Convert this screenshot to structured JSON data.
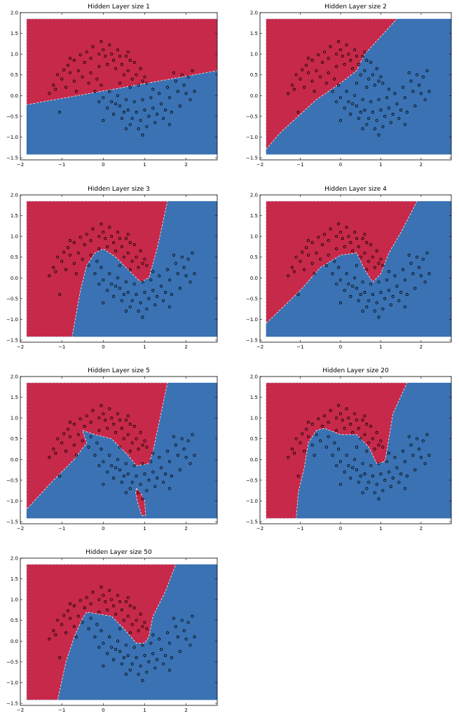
{
  "colors": {
    "red_region": "#c7294a",
    "blue_region": "#3a72b3",
    "point_stroke": "#000000",
    "background": "#ffffff"
  },
  "chart_data": [
    {
      "type": "scatter",
      "title": "Hidden Layer size 1",
      "xlim": [
        -2,
        2.75
      ],
      "ylim": [
        -1.55,
        2.0
      ],
      "xticks": [
        -2,
        -1,
        0,
        1,
        2
      ],
      "yticks": [
        2.0,
        1.5,
        1.0,
        0.5,
        0.0,
        -0.5,
        -1.0,
        -1.5
      ],
      "region_extent": {
        "x": [
          -1.85,
          2.75
        ],
        "y": [
          -1.42,
          1.85
        ]
      },
      "red_region": [
        [
          -1.85,
          1.85
        ],
        [
          2.75,
          1.85
        ],
        [
          2.75,
          0.6
        ],
        [
          -1.85,
          -0.22
        ]
      ]
    },
    {
      "type": "scatter",
      "title": "Hidden Layer size 2",
      "xlim": [
        -2,
        2.75
      ],
      "ylim": [
        -1.55,
        2.0
      ],
      "xticks": [
        -2,
        -1,
        0,
        1,
        2
      ],
      "yticks": [
        2.0,
        1.5,
        1.0,
        0.5,
        0.0,
        -0.5,
        -1.0,
        -1.5
      ],
      "region_extent": {
        "x": [
          -1.85,
          2.75
        ],
        "y": [
          -1.42,
          1.85
        ]
      },
      "red_region": [
        [
          -1.85,
          1.85
        ],
        [
          1.4,
          1.85
        ],
        [
          0.6,
          1.0
        ],
        [
          0.4,
          0.6
        ],
        [
          0.0,
          0.3
        ],
        [
          -0.6,
          -0.1
        ],
        [
          -1.5,
          -0.9
        ],
        [
          -1.85,
          -1.3
        ]
      ]
    },
    {
      "type": "scatter",
      "title": "Hidden Layer size 3",
      "xlim": [
        -2,
        2.75
      ],
      "ylim": [
        -1.55,
        2.0
      ],
      "xticks": [
        -2,
        -1,
        0,
        1,
        2
      ],
      "yticks": [
        2.0,
        1.5,
        1.0,
        0.5,
        0.0,
        -0.5,
        -1.0,
        -1.5
      ],
      "region_extent": {
        "x": [
          -1.85,
          2.75
        ],
        "y": [
          -1.42,
          1.85
        ]
      },
      "red_region": [
        [
          -1.85,
          1.85
        ],
        [
          1.55,
          1.85
        ],
        [
          1.3,
          0.7
        ],
        [
          1.1,
          0.0
        ],
        [
          0.9,
          -0.1
        ],
        [
          0.6,
          0.2
        ],
        [
          0.3,
          0.5
        ],
        [
          0.0,
          0.7
        ],
        [
          -0.2,
          0.6
        ],
        [
          -0.4,
          0.3
        ],
        [
          -0.55,
          -0.3
        ],
        [
          -0.75,
          -1.42
        ],
        [
          -1.85,
          -1.42
        ]
      ]
    },
    {
      "type": "scatter",
      "title": "Hidden Layer size 4",
      "xlim": [
        -2,
        2.75
      ],
      "ylim": [
        -1.55,
        2.0
      ],
      "xticks": [
        -2,
        -1,
        0,
        1,
        2
      ],
      "yticks": [
        2.0,
        1.5,
        1.0,
        0.5,
        0.0,
        -0.5,
        -1.0,
        -1.5
      ],
      "region_extent": {
        "x": [
          -1.85,
          2.75
        ],
        "y": [
          -1.42,
          1.85
        ]
      },
      "red_region": [
        [
          -1.85,
          1.85
        ],
        [
          1.9,
          1.85
        ],
        [
          1.5,
          1.1
        ],
        [
          1.2,
          0.6
        ],
        [
          1.0,
          0.1
        ],
        [
          0.8,
          -0.1
        ],
        [
          0.6,
          0.2
        ],
        [
          0.4,
          0.6
        ],
        [
          0.0,
          0.55
        ],
        [
          -0.5,
          0.25
        ],
        [
          -1.0,
          -0.3
        ],
        [
          -1.85,
          -1.1
        ]
      ]
    },
    {
      "type": "scatter",
      "title": "Hidden Layer size 5",
      "xlim": [
        -2,
        2.75
      ],
      "ylim": [
        -1.55,
        2.0
      ],
      "xticks": [
        -2,
        -1,
        0,
        1,
        2
      ],
      "yticks": [
        2.0,
        1.5,
        1.0,
        0.5,
        0.0,
        -0.5,
        -1.0,
        -1.5
      ],
      "region_extent": {
        "x": [
          -1.85,
          2.75
        ],
        "y": [
          -1.42,
          1.85
        ]
      },
      "red_region": [
        [
          -1.85,
          1.85
        ],
        [
          1.55,
          1.85
        ],
        [
          1.35,
          0.9
        ],
        [
          1.2,
          0.2
        ],
        [
          1.1,
          -0.1
        ],
        [
          0.8,
          -0.15
        ],
        [
          0.6,
          0.1
        ],
        [
          0.2,
          0.5
        ],
        [
          -0.2,
          0.6
        ],
        [
          -0.5,
          0.7
        ],
        [
          -0.4,
          0.4
        ],
        [
          -0.7,
          0.0
        ],
        [
          -1.2,
          -0.5
        ],
        [
          -1.85,
          -1.2
        ]
      ],
      "red_island": [
        [
          0.8,
          -0.7
        ],
        [
          0.9,
          -0.8
        ],
        [
          1.0,
          -1.0
        ],
        [
          1.02,
          -1.35
        ],
        [
          0.93,
          -1.35
        ],
        [
          0.82,
          -1.0
        ],
        [
          0.78,
          -0.8
        ]
      ]
    },
    {
      "type": "scatter",
      "title": "Hidden Layer size 20",
      "xlim": [
        -2,
        2.75
      ],
      "ylim": [
        -1.55,
        2.0
      ],
      "xticks": [
        -2,
        -1,
        0,
        1,
        2
      ],
      "yticks": [
        2.0,
        1.5,
        1.0,
        0.5,
        0.0,
        -0.5,
        -1.0,
        -1.5
      ],
      "region_extent": {
        "x": [
          -1.85,
          2.75
        ],
        "y": [
          -1.42,
          1.85
        ]
      },
      "red_region": [
        [
          -1.85,
          1.85
        ],
        [
          1.65,
          1.85
        ],
        [
          1.3,
          1.1
        ],
        [
          1.2,
          0.5
        ],
        [
          1.1,
          -0.05
        ],
        [
          0.9,
          -0.1
        ],
        [
          0.7,
          0.3
        ],
        [
          0.4,
          0.6
        ],
        [
          0.0,
          0.6
        ],
        [
          -0.4,
          0.75
        ],
        [
          -0.6,
          0.7
        ],
        [
          -0.8,
          0.4
        ],
        [
          -0.9,
          -0.2
        ],
        [
          -1.05,
          -0.8
        ],
        [
          -1.1,
          -1.42
        ],
        [
          -1.85,
          -1.42
        ]
      ]
    },
    {
      "type": "scatter",
      "title": "Hidden Layer size 50",
      "xlim": [
        -2,
        2.75
      ],
      "ylim": [
        -1.55,
        2.0
      ],
      "xticks": [
        -2,
        -1,
        0,
        1,
        2
      ],
      "yticks": [
        2.0,
        1.5,
        1.0,
        0.5,
        0.0,
        -0.5,
        -1.0,
        -1.5
      ],
      "region_extent": {
        "x": [
          -1.85,
          2.75
        ],
        "y": [
          -1.42,
          1.85
        ]
      },
      "red_region": [
        [
          -1.85,
          1.85
        ],
        [
          1.75,
          1.85
        ],
        [
          1.5,
          1.2
        ],
        [
          1.2,
          0.6
        ],
        [
          1.1,
          0.1
        ],
        [
          1.0,
          -0.05
        ],
        [
          0.8,
          -0.05
        ],
        [
          0.5,
          0.3
        ],
        [
          0.2,
          0.6
        ],
        [
          -0.1,
          0.65
        ],
        [
          -0.4,
          0.7
        ],
        [
          -0.5,
          0.55
        ],
        [
          -0.7,
          0.1
        ],
        [
          -0.9,
          -0.5
        ],
        [
          -1.1,
          -1.42
        ],
        [
          -1.85,
          -1.42
        ]
      ]
    }
  ],
  "scatter_points": [
    [
      -1.1,
      0.5
    ],
    [
      -0.95,
      0.62
    ],
    [
      -0.85,
      0.73
    ],
    [
      -0.7,
      0.85
    ],
    [
      -0.55,
      0.98
    ],
    [
      -0.4,
      1.05
    ],
    [
      -0.25,
      1.18
    ],
    [
      -0.05,
      1.3
    ],
    [
      0.15,
      1.22
    ],
    [
      0.35,
      1.1
    ],
    [
      0.55,
      0.95
    ],
    [
      0.75,
      0.8
    ],
    [
      0.9,
      0.65
    ],
    [
      1.0,
      0.45
    ],
    [
      1.05,
      0.3
    ],
    [
      -1.2,
      0.25
    ],
    [
      -1.0,
      0.4
    ],
    [
      -0.8,
      0.55
    ],
    [
      -0.6,
      0.6
    ],
    [
      -0.45,
      0.8
    ],
    [
      -0.3,
      0.9
    ],
    [
      -0.1,
      1.0
    ],
    [
      0.05,
      0.95
    ],
    [
      0.25,
      0.85
    ],
    [
      0.45,
      0.75
    ],
    [
      0.6,
      0.6
    ],
    [
      0.8,
      0.5
    ],
    [
      0.95,
      0.35
    ],
    [
      -1.3,
      0.05
    ],
    [
      -1.15,
      0.15
    ],
    [
      -0.9,
      0.2
    ],
    [
      -0.7,
      0.35
    ],
    [
      -0.5,
      0.45
    ],
    [
      -0.3,
      0.55
    ],
    [
      -0.1,
      0.7
    ],
    [
      0.1,
      0.75
    ],
    [
      0.3,
      0.65
    ],
    [
      0.5,
      0.5
    ],
    [
      0.7,
      0.4
    ],
    [
      0.85,
      0.25
    ],
    [
      -1.05,
      -0.4
    ],
    [
      -0.65,
      0.1
    ],
    [
      -0.35,
      0.3
    ],
    [
      0.0,
      1.1
    ],
    [
      0.2,
      1.0
    ],
    [
      0.4,
      0.95
    ],
    [
      0.6,
      1.05
    ],
    [
      -0.15,
      0.4
    ],
    [
      0.65,
      0.85
    ],
    [
      -0.8,
      0.9
    ],
    [
      -0.2,
      0.1
    ],
    [
      0.0,
      -0.05
    ],
    [
      0.2,
      -0.15
    ],
    [
      0.4,
      -0.25
    ],
    [
      0.6,
      -0.35
    ],
    [
      0.8,
      -0.4
    ],
    [
      1.0,
      -0.35
    ],
    [
      1.2,
      -0.3
    ],
    [
      1.4,
      -0.2
    ],
    [
      1.6,
      -0.05
    ],
    [
      1.8,
      0.1
    ],
    [
      1.95,
      0.25
    ],
    [
      2.05,
      0.45
    ],
    [
      2.15,
      0.6
    ],
    [
      -0.05,
      0.25
    ],
    [
      0.15,
      0.1
    ],
    [
      0.35,
      0.0
    ],
    [
      0.55,
      -0.1
    ],
    [
      0.75,
      -0.15
    ],
    [
      0.95,
      -0.1
    ],
    [
      1.15,
      -0.05
    ],
    [
      1.35,
      0.05
    ],
    [
      1.55,
      0.2
    ],
    [
      1.75,
      0.35
    ],
    [
      1.9,
      0.5
    ],
    [
      2.0,
      0.05
    ],
    [
      2.2,
      0.1
    ],
    [
      0.25,
      -0.45
    ],
    [
      0.45,
      -0.55
    ],
    [
      0.65,
      -0.7
    ],
    [
      0.85,
      -0.8
    ],
    [
      1.05,
      -0.75
    ],
    [
      1.25,
      -0.65
    ],
    [
      1.45,
      -0.55
    ],
    [
      1.65,
      -0.4
    ],
    [
      1.85,
      -0.25
    ],
    [
      0.1,
      -0.3
    ],
    [
      0.3,
      -0.2
    ],
    [
      0.5,
      -0.4
    ],
    [
      0.7,
      -0.55
    ],
    [
      0.9,
      -0.6
    ],
    [
      1.1,
      -0.5
    ],
    [
      1.3,
      -0.45
    ],
    [
      1.5,
      -0.35
    ],
    [
      0.0,
      -0.6
    ],
    [
      0.55,
      -0.8
    ],
    [
      0.95,
      -0.95
    ],
    [
      1.6,
      -0.7
    ],
    [
      0.4,
      0.3
    ],
    [
      0.65,
      0.2
    ],
    [
      1.7,
      0.55
    ],
    [
      2.1,
      -0.1
    ],
    [
      -0.1,
      -0.15
    ],
    [
      1.2,
      0.15
    ]
  ]
}
